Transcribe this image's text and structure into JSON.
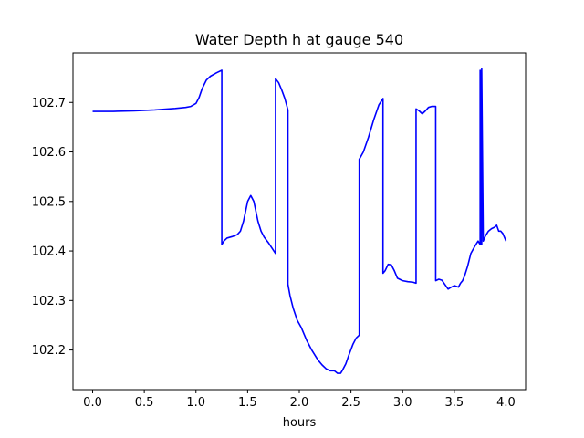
{
  "chart_data": {
    "type": "line",
    "title": "Water Depth h at gauge 540",
    "xlabel": "hours",
    "ylabel": "",
    "xlim": [
      -0.19,
      4.19
    ],
    "ylim": [
      102.12,
      102.8
    ],
    "xticks": [
      0.0,
      0.5,
      1.0,
      1.5,
      2.0,
      2.5,
      3.0,
      3.5,
      4.0
    ],
    "xtick_labels": [
      "0.0",
      "0.5",
      "1.0",
      "1.5",
      "2.0",
      "2.5",
      "3.0",
      "3.5",
      "4.0"
    ],
    "yticks": [
      102.2,
      102.3,
      102.4,
      102.5,
      102.6,
      102.7
    ],
    "ytick_labels": [
      "102.2",
      "102.3",
      "102.4",
      "102.5",
      "102.6",
      "102.7"
    ],
    "grid": false,
    "line_color": "#0000ff",
    "series": [
      {
        "name": "",
        "x": [
          0.0,
          0.2,
          0.4,
          0.6,
          0.8,
          0.9,
          0.95,
          1.0,
          1.03,
          1.06,
          1.1,
          1.14,
          1.2,
          1.25,
          1.25,
          1.27,
          1.3,
          1.35,
          1.4,
          1.43,
          1.46,
          1.5,
          1.53,
          1.56,
          1.6,
          1.63,
          1.66,
          1.7,
          1.77,
          1.77,
          1.8,
          1.83,
          1.86,
          1.89,
          1.89,
          1.91,
          1.94,
          1.98,
          2.02,
          2.07,
          2.12,
          2.18,
          2.22,
          2.26,
          2.3,
          2.34,
          2.37,
          2.4,
          2.42,
          2.45,
          2.48,
          2.52,
          2.55,
          2.58,
          2.58,
          2.62,
          2.67,
          2.72,
          2.77,
          2.81,
          2.81,
          2.83,
          2.86,
          2.89,
          2.92,
          2.95,
          3.0,
          3.05,
          3.1,
          3.13,
          3.13,
          3.16,
          3.19,
          3.22,
          3.25,
          3.28,
          3.32,
          3.32,
          3.35,
          3.38,
          3.41,
          3.44,
          3.47,
          3.5,
          3.54,
          3.56,
          3.58,
          3.6,
          3.63,
          3.66,
          3.7,
          3.73,
          3.75,
          3.75,
          3.755,
          3.76,
          3.765,
          3.765,
          3.78,
          3.8,
          3.83,
          3.86,
          3.89,
          3.91,
          3.93,
          3.95,
          3.97,
          3.99,
          4.0
        ],
        "y": [
          102.682,
          102.682,
          102.683,
          102.685,
          102.688,
          102.69,
          102.692,
          102.698,
          102.71,
          102.728,
          102.745,
          102.753,
          102.76,
          102.765,
          102.413,
          102.42,
          102.426,
          102.429,
          102.433,
          102.44,
          102.46,
          102.5,
          102.512,
          102.5,
          102.46,
          102.44,
          102.428,
          102.417,
          102.395,
          102.748,
          102.74,
          102.725,
          102.708,
          102.685,
          102.333,
          102.31,
          102.285,
          102.26,
          102.245,
          102.22,
          102.2,
          102.18,
          102.17,
          102.162,
          102.158,
          102.158,
          102.153,
          102.153,
          102.16,
          102.172,
          102.19,
          102.212,
          102.224,
          102.23,
          102.585,
          102.6,
          102.63,
          102.665,
          102.695,
          102.708,
          102.355,
          102.36,
          102.373,
          102.372,
          102.36,
          102.345,
          102.34,
          102.338,
          102.337,
          102.335,
          102.687,
          102.683,
          102.677,
          102.683,
          102.69,
          102.692,
          102.692,
          102.34,
          102.343,
          102.341,
          102.332,
          102.323,
          102.327,
          102.33,
          102.327,
          102.335,
          102.34,
          102.35,
          102.37,
          102.395,
          102.41,
          102.42,
          102.413,
          102.765,
          102.762,
          102.413,
          102.413,
          102.768,
          102.42,
          102.43,
          102.44,
          102.445,
          102.448,
          102.452,
          102.44,
          102.44,
          102.435,
          102.425,
          102.42
        ]
      }
    ]
  }
}
